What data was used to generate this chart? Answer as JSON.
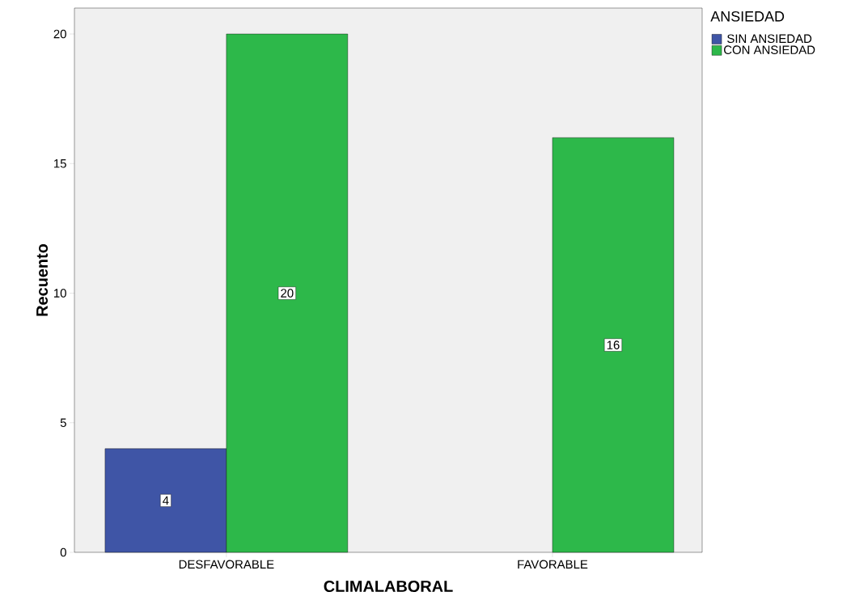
{
  "chart_data": {
    "type": "bar",
    "xlabel": "CLIMALABORAL",
    "ylabel": "Recuento",
    "legend_title": "ANSIEDAD",
    "categories": [
      "DESFAVORABLE",
      "FAVORABLE"
    ],
    "series": [
      {
        "name": "SIN ANSIEDAD",
        "color": "#3f55a6",
        "values": [
          4,
          null
        ]
      },
      {
        "name": "CON ANSIEDAD",
        "color": "#2db84a",
        "values": [
          20,
          16
        ]
      }
    ],
    "ylim": [
      0,
      21
    ],
    "yticks": [
      0,
      5,
      10,
      15,
      20
    ],
    "grid": false,
    "legend": "top right",
    "data_labels": true
  }
}
